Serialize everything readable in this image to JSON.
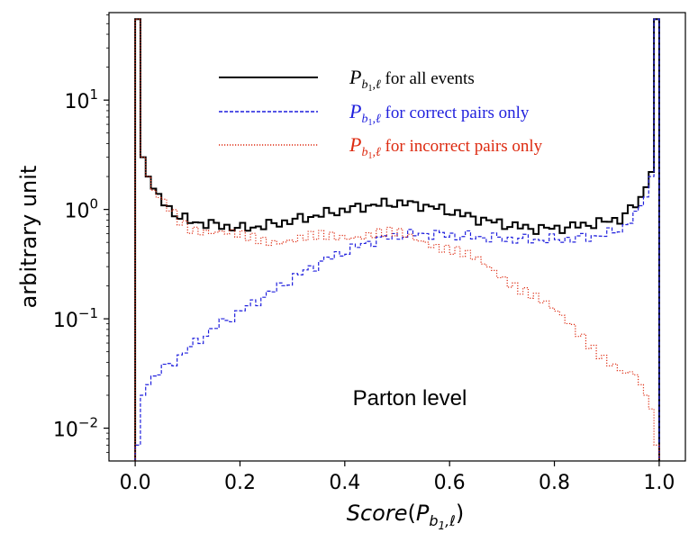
{
  "chart_data": {
    "type": "histogram-step",
    "title": "",
    "xlabel": "Score",
    "xlabel_sub": "b",
    "xlabel_subsub": "1",
    "xlabel_sub_tail": ",ℓ",
    "ylabel": "arbitrary unit",
    "xlim": [
      -0.05,
      1.05
    ],
    "ylim_log10": [
      -2.3,
      1.8
    ],
    "yscale": "log",
    "xticks": [
      0.0,
      0.2,
      0.4,
      0.6,
      0.8,
      1.0
    ],
    "xtick_labels": [
      "0.0",
      "0.2",
      "0.4",
      "0.6",
      "0.8",
      "1.0"
    ],
    "yticks": [
      0.01,
      0.1,
      1,
      10
    ],
    "ytick_base": "10",
    "ytick_exponents": [
      "−2",
      "−1",
      "0",
      "1"
    ],
    "annotation": "Parton level",
    "legend": {
      "placement": "top-center",
      "entries": [
        {
          "symbol": "P",
          "sub": "b",
          "subsub": "1",
          "sub_tail": ",ℓ",
          "text": " for all events",
          "color": "#000000",
          "style": "solid"
        },
        {
          "symbol": "P",
          "sub": "b",
          "subsub": "1",
          "sub_tail": ",ℓ",
          "text": " for correct pairs only",
          "color": "#1f1fdd",
          "style": "dashed"
        },
        {
          "symbol": "P",
          "sub": "b",
          "subsub": "1",
          "sub_tail": ",ℓ",
          "text": " for incorrect pairs only",
          "color": "#dd2a10",
          "style": "dotted"
        }
      ]
    },
    "bin_width": 0.01,
    "series": [
      {
        "name": "all events",
        "color": "#000000",
        "style": "solid",
        "points": [
          [
            0.0,
            55
          ],
          [
            0.01,
            3
          ],
          [
            0.02,
            2
          ],
          [
            0.03,
            1.55
          ],
          [
            0.04,
            1.3
          ],
          [
            0.05,
            1.15
          ],
          [
            0.06,
            1.03
          ],
          [
            0.07,
            0.93
          ],
          [
            0.08,
            0.85
          ],
          [
            0.1,
            0.78
          ],
          [
            0.15,
            0.72
          ],
          [
            0.2,
            0.67
          ],
          [
            0.25,
            0.72
          ],
          [
            0.3,
            0.8
          ],
          [
            0.35,
            0.9
          ],
          [
            0.4,
            1.0
          ],
          [
            0.45,
            1.1
          ],
          [
            0.5,
            1.15
          ],
          [
            0.55,
            1.08
          ],
          [
            0.6,
            0.95
          ],
          [
            0.65,
            0.82
          ],
          [
            0.7,
            0.73
          ],
          [
            0.75,
            0.67
          ],
          [
            0.8,
            0.67
          ],
          [
            0.85,
            0.72
          ],
          [
            0.9,
            0.78
          ],
          [
            0.92,
            0.83
          ],
          [
            0.93,
            0.9
          ],
          [
            0.94,
            1.0
          ],
          [
            0.95,
            1.1
          ],
          [
            0.96,
            1.3
          ],
          [
            0.97,
            1.6
          ],
          [
            0.98,
            2.2
          ],
          [
            0.99,
            55
          ]
        ]
      },
      {
        "name": "correct pairs only",
        "color": "#1f1fdd",
        "style": "dashed",
        "points": [
          [
            0.0,
            0.007
          ],
          [
            0.01,
            0.02
          ],
          [
            0.02,
            0.025
          ],
          [
            0.03,
            0.03
          ],
          [
            0.05,
            0.035
          ],
          [
            0.08,
            0.045
          ],
          [
            0.1,
            0.055
          ],
          [
            0.15,
            0.085
          ],
          [
            0.2,
            0.12
          ],
          [
            0.25,
            0.17
          ],
          [
            0.3,
            0.24
          ],
          [
            0.35,
            0.33
          ],
          [
            0.4,
            0.42
          ],
          [
            0.45,
            0.52
          ],
          [
            0.5,
            0.58
          ],
          [
            0.55,
            0.6
          ],
          [
            0.6,
            0.58
          ],
          [
            0.65,
            0.56
          ],
          [
            0.7,
            0.54
          ],
          [
            0.75,
            0.53
          ],
          [
            0.8,
            0.53
          ],
          [
            0.85,
            0.55
          ],
          [
            0.9,
            0.6
          ],
          [
            0.93,
            0.7
          ],
          [
            0.95,
            0.9
          ],
          [
            0.97,
            1.3
          ],
          [
            0.98,
            2.0
          ],
          [
            0.99,
            55
          ]
        ]
      },
      {
        "name": "incorrect pairs only",
        "color": "#dd2a10",
        "style": "dotted",
        "points": [
          [
            0.0,
            55
          ],
          [
            0.01,
            3
          ],
          [
            0.02,
            2
          ],
          [
            0.03,
            1.5
          ],
          [
            0.04,
            1.25
          ],
          [
            0.05,
            1.1
          ],
          [
            0.06,
            1.0
          ],
          [
            0.07,
            0.9
          ],
          [
            0.08,
            0.8
          ],
          [
            0.1,
            0.7
          ],
          [
            0.15,
            0.62
          ],
          [
            0.2,
            0.55
          ],
          [
            0.25,
            0.53
          ],
          [
            0.3,
            0.53
          ],
          [
            0.35,
            0.55
          ],
          [
            0.4,
            0.58
          ],
          [
            0.45,
            0.6
          ],
          [
            0.5,
            0.58
          ],
          [
            0.55,
            0.52
          ],
          [
            0.6,
            0.43
          ],
          [
            0.65,
            0.33
          ],
          [
            0.7,
            0.24
          ],
          [
            0.75,
            0.17
          ],
          [
            0.8,
            0.11
          ],
          [
            0.85,
            0.07
          ],
          [
            0.88,
            0.05
          ],
          [
            0.9,
            0.04
          ],
          [
            0.93,
            0.03
          ],
          [
            0.95,
            0.03
          ],
          [
            0.96,
            0.025
          ],
          [
            0.97,
            0.02
          ],
          [
            0.98,
            0.015
          ],
          [
            0.99,
            0.007
          ]
        ]
      }
    ]
  }
}
